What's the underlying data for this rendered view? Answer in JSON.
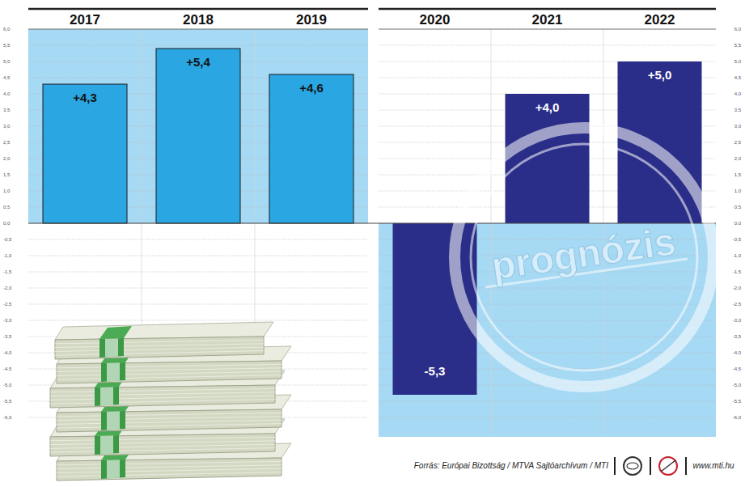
{
  "chart_data": {
    "type": "bar",
    "categories": [
      "2017",
      "2018",
      "2019",
      "2020",
      "2021",
      "2022"
    ],
    "values": [
      4.3,
      5.4,
      4.6,
      -5.3,
      4.0,
      5.0
    ],
    "value_labels": [
      "+4,3",
      "+5,4",
      "+4,6",
      "-5,3",
      "+4,0",
      "+5,0"
    ],
    "colors": [
      "#2aa6e2",
      "#2aa6e2",
      "#2aa6e2",
      "#2b2e88",
      "#2b2e88",
      "#2b2e88"
    ],
    "ylim": [
      -6,
      6
    ],
    "yticks": [
      {
        "value": -6,
        "label": "-6,0"
      },
      {
        "value": -5.5,
        "label": "-5,5"
      },
      {
        "value": -5,
        "label": "-5,0"
      },
      {
        "value": -4.5,
        "label": "-4,5"
      },
      {
        "value": -4,
        "label": "-4,0"
      },
      {
        "value": -3.5,
        "label": "-3,5"
      },
      {
        "value": -3,
        "label": "-3,0"
      },
      {
        "value": -2.5,
        "label": "-2,5"
      },
      {
        "value": -2,
        "label": "-2,0"
      },
      {
        "value": -1.5,
        "label": "-1,5"
      },
      {
        "value": -1,
        "label": "-1,0"
      },
      {
        "value": -0.5,
        "label": "-0,5"
      },
      {
        "value": 0,
        "label": "0,0"
      },
      {
        "value": 0.5,
        "label": "0,5"
      },
      {
        "value": 1,
        "label": "1,0"
      },
      {
        "value": 1.5,
        "label": "1,5"
      },
      {
        "value": 2,
        "label": "2,0"
      },
      {
        "value": 2.5,
        "label": "2,5"
      },
      {
        "value": 3,
        "label": "3,0"
      },
      {
        "value": 3.5,
        "label": "3,5"
      },
      {
        "value": 4,
        "label": "4,0"
      },
      {
        "value": 4.5,
        "label": "4,5"
      },
      {
        "value": 5,
        "label": "5,0"
      },
      {
        "value": 5.5,
        "label": "5,5"
      },
      {
        "value": 6,
        "label": "6,0"
      }
    ],
    "grid": true,
    "data_labels": true,
    "annotations": [
      "prognózis"
    ],
    "source": "Forrás: Európai Bizottság / MTVA Sajtóarchívum / MTI",
    "url": "www.mti.hu"
  }
}
